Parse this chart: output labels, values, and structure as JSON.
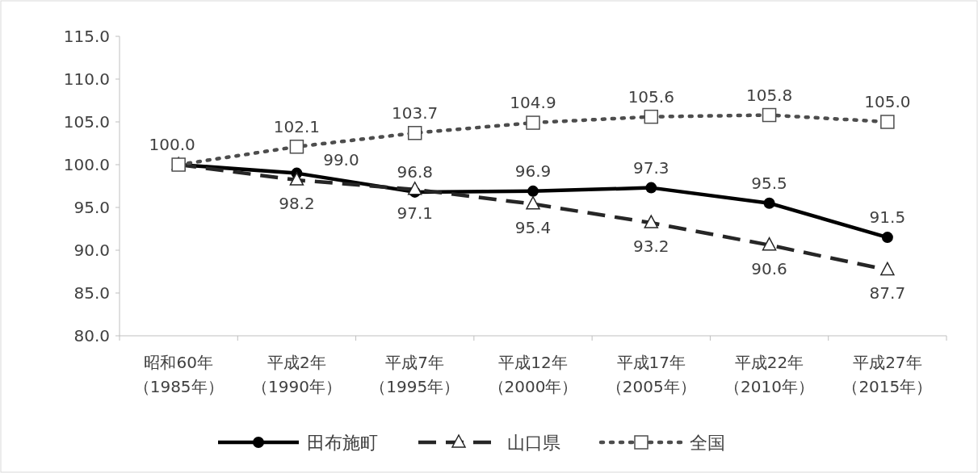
{
  "chart_data": {
    "type": "line",
    "categories": [
      "昭和60年（1985年）",
      "平成2年（1990年）",
      "平成7年（1995年）",
      "平成12年（2000年）",
      "平成17年（2005年）",
      "平成22年（2010年）",
      "平成27年（2015年）"
    ],
    "ylim": [
      80,
      115
    ],
    "yticks": [
      {
        "value": 80,
        "label": "80.0"
      },
      {
        "value": 85,
        "label": "85.0"
      },
      {
        "value": 90,
        "label": "90.0"
      },
      {
        "value": 95,
        "label": "95.0"
      },
      {
        "value": 100,
        "label": "100.0"
      },
      {
        "value": 105,
        "label": "105.0"
      },
      {
        "value": 110,
        "label": "110.0"
      },
      {
        "value": 115,
        "label": "115.0"
      }
    ],
    "grid": false,
    "legend": "bottom",
    "series": [
      {
        "name": "田布施町",
        "color": "#000000",
        "marker": "circle",
        "line_style": "solid",
        "values": [
          100.0,
          99.0,
          96.8,
          96.9,
          97.3,
          95.5,
          91.5
        ],
        "value_labels": [
          null,
          "99.0",
          "96.8",
          "96.9",
          "97.3",
          "95.5",
          "91.5"
        ]
      },
      {
        "name": "山口県",
        "color": "#262626",
        "marker": "triangle",
        "line_style": "dashed",
        "values": [
          100.0,
          98.2,
          97.1,
          95.4,
          93.2,
          90.6,
          87.7
        ],
        "value_labels": [
          null,
          "98.2",
          "97.1",
          "95.4",
          "93.2",
          "90.6",
          "87.7"
        ]
      },
      {
        "name": "全国",
        "color": "#4d4d4d",
        "marker": "square",
        "line_style": "dotted",
        "values": [
          100.0,
          102.1,
          103.7,
          104.9,
          105.6,
          105.8,
          105.0
        ],
        "value_labels": [
          "100.0",
          "102.1",
          "103.7",
          "104.9",
          "105.6",
          "105.8",
          "105.0"
        ]
      }
    ]
  }
}
